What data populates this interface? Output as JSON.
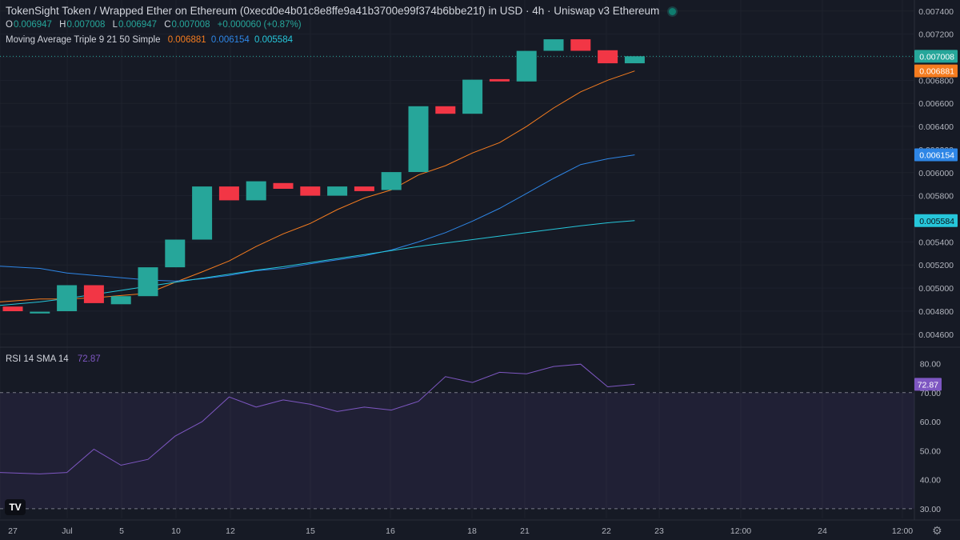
{
  "header": {
    "title": "TokenSight Token / Wrapped Ether on Ethereum (0xecd0e4b01c8e8ffe9a41b3700e99f374b6bbe21f) in USD · 4h · Uniswap v3 Ethereum",
    "ohlc": {
      "o_label": "O",
      "o": "0.006947",
      "h_label": "H",
      "h": "0.007008",
      "l_label": "L",
      "l": "0.006947",
      "c_label": "C",
      "c": "0.007008",
      "change": "+0.000060 (+0.87%)"
    },
    "ma_label": "Moving Average Triple 9 21 50 Simple",
    "ma_values": [
      "0.006881",
      "0.006154",
      "0.005584"
    ],
    "rsi_label": "RSI 14 SMA 14",
    "rsi_value": "72.87"
  },
  "colors": {
    "up": "#26a69a",
    "down": "#f23645",
    "ma9": "#f57c1f",
    "ma21": "#2e86e6",
    "ma50": "#26c6da",
    "rsi": "#7e57c2",
    "background": "#161a25"
  },
  "chart_data": [
    {
      "type": "candlestick",
      "x_ticks": [
        "27",
        "Jul",
        "5",
        "10",
        "12",
        "15",
        "16",
        "18",
        "21",
        "22",
        "23",
        "12:00",
        "24",
        "12:00"
      ],
      "y_ticks": [
        "0.007400",
        "0.007200",
        "0.007000",
        "0.006800",
        "0.006600",
        "0.006400",
        "0.006200",
        "0.006000",
        "0.005800",
        "0.005600",
        "0.005400",
        "0.005200",
        "0.005000",
        "0.004800",
        "0.004600"
      ],
      "ylim": [
        0.00455,
        0.00744
      ],
      "candles": [
        {
          "o": 0.00484,
          "c": 0.0048
        },
        {
          "o": 0.00478,
          "c": 0.004795
        },
        {
          "o": 0.0048,
          "c": 0.005025
        },
        {
          "o": 0.005025,
          "c": 0.00487
        },
        {
          "o": 0.00486,
          "c": 0.00493
        },
        {
          "o": 0.00493,
          "c": 0.00518
        },
        {
          "o": 0.00518,
          "c": 0.00542
        },
        {
          "o": 0.00542,
          "c": 0.00588
        },
        {
          "o": 0.00588,
          "c": 0.00576
        },
        {
          "o": 0.00576,
          "c": 0.005925
        },
        {
          "o": 0.00591,
          "c": 0.00586
        },
        {
          "o": 0.00588,
          "c": 0.0058
        },
        {
          "o": 0.0058,
          "c": 0.00588
        },
        {
          "o": 0.00588,
          "c": 0.00584
        },
        {
          "o": 0.00585,
          "c": 0.006005
        },
        {
          "o": 0.006005,
          "c": 0.006575
        },
        {
          "o": 0.006575,
          "c": 0.00651
        },
        {
          "o": 0.00651,
          "c": 0.006805
        },
        {
          "o": 0.00681,
          "c": 0.00679
        },
        {
          "o": 0.00679,
          "c": 0.007055
        },
        {
          "o": 0.007055,
          "c": 0.007155
        },
        {
          "o": 0.007155,
          "c": 0.007055
        },
        {
          "o": 0.00706,
          "c": 0.006947
        },
        {
          "o": 0.006947,
          "c": 0.007008
        }
      ],
      "series": [
        {
          "name": "MA 9",
          "values": [
            0.00488,
            0.004905,
            0.004905,
            0.004915,
            0.004935,
            0.004955,
            0.00505,
            0.00514,
            0.005235,
            0.00536,
            0.00547,
            0.00556,
            0.00568,
            0.00578,
            0.00585,
            0.00598,
            0.00606,
            0.00617,
            0.00626,
            0.0064,
            0.00656,
            0.0067,
            0.0068,
            0.006881
          ]
        },
        {
          "name": "MA 21",
          "values": [
            0.00519,
            0.00517,
            0.00513,
            0.00511,
            0.00509,
            0.00507,
            0.00506,
            0.00508,
            0.00511,
            0.00515,
            0.00517,
            0.00521,
            0.005245,
            0.00528,
            0.00533,
            0.0054,
            0.00548,
            0.00558,
            0.00569,
            0.00582,
            0.00595,
            0.00607,
            0.00612,
            0.006154
          ]
        },
        {
          "name": "MA 50",
          "values": [
            0.00485,
            0.00488,
            0.00491,
            0.004945,
            0.00498,
            0.005015,
            0.00505,
            0.005085,
            0.00512,
            0.005155,
            0.005185,
            0.00522,
            0.005255,
            0.00529,
            0.005325,
            0.00536,
            0.00539,
            0.00542,
            0.00545,
            0.00548,
            0.00551,
            0.00554,
            0.005565,
            0.005584
          ]
        }
      ],
      "last_price": "0.007008"
    },
    {
      "type": "line",
      "y_ticks": [
        "80.00",
        "70.00",
        "60.00",
        "50.00",
        "40.00",
        "30.00"
      ],
      "ylim": [
        27.5,
        84
      ],
      "band": [
        30,
        70
      ],
      "series": [
        {
          "name": "RSI",
          "values": [
            42.5,
            42.0,
            42.5,
            50.5,
            45.0,
            47.0,
            55.0,
            60.0,
            68.5,
            65.0,
            67.5,
            66.0,
            63.5,
            65.0,
            64.0,
            67.0,
            75.5,
            73.5,
            77.0,
            76.5,
            79.0,
            79.8,
            72.0,
            72.87
          ]
        }
      ]
    }
  ]
}
